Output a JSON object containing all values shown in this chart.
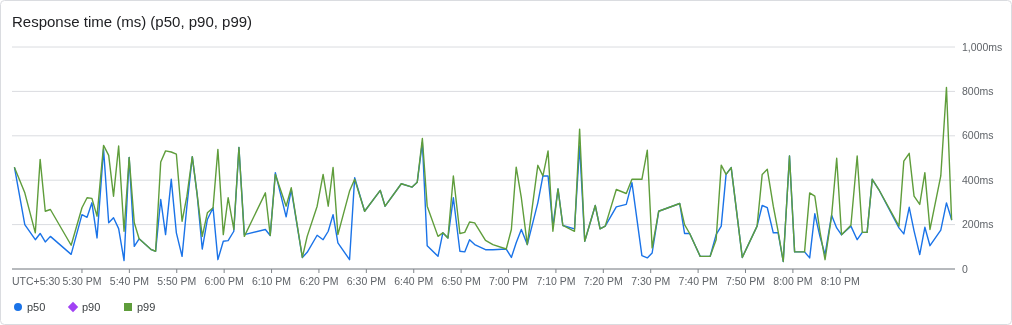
{
  "chart_data": {
    "type": "line",
    "title": "Response time (ms) (p50, p90, p99)",
    "annotations": [
      "UTC+5:30"
    ],
    "x": [
      17.263,
      17.299,
      17.336,
      17.353,
      17.371,
      17.389,
      17.462,
      17.5,
      17.518,
      17.535,
      17.553,
      17.576,
      17.594,
      17.611,
      17.629,
      17.648,
      17.666,
      17.684,
      17.701,
      17.744,
      17.759,
      17.777,
      17.794,
      17.814,
      17.832,
      17.852,
      17.869,
      17.888,
      17.905,
      17.923,
      17.941,
      17.961,
      17.978,
      17.997,
      18.014,
      18.034,
      18.052,
      18.071,
      18.145,
      18.162,
      18.18,
      18.218,
      18.236,
      18.275,
      18.292,
      18.327,
      18.348,
      18.366,
      18.383,
      18.4,
      18.441,
      18.459,
      18.494,
      18.549,
      18.566,
      18.623,
      18.661,
      18.679,
      18.697,
      18.714,
      18.752,
      18.769,
      18.787,
      18.806,
      18.829,
      18.846,
      18.863,
      18.881,
      18.919,
      18.945,
      18.992,
      19.01,
      19.027,
      19.045,
      19.066,
      19.103,
      19.121,
      19.139,
      19.156,
      19.174,
      19.191,
      19.232,
      19.25,
      19.268,
      19.305,
      19.322,
      19.34,
      19.379,
      19.414,
      19.434,
      19.469,
      19.488,
      19.505,
      19.528,
      19.602,
      19.619,
      19.637,
      19.674,
      19.709,
      19.73,
      19.748,
      19.765,
      19.783,
      19.822,
      19.874,
      19.892,
      19.91,
      19.931,
      19.948,
      19.966,
      19.988,
      20.006,
      20.041,
      20.059,
      20.077,
      20.095,
      20.113,
      20.136,
      20.154,
      20.171,
      20.204,
      20.226,
      20.244,
      20.261,
      20.279,
      20.302,
      20.373,
      20.39,
      20.409,
      20.426,
      20.446,
      20.464,
      20.482,
      20.52,
      20.54,
      20.558
    ],
    "series": [
      {
        "name": "p50",
        "color": "#1a73e8",
        "values": [
          456,
          200,
          132,
          160,
          122,
          147,
          66,
          245,
          233,
          298,
          140,
          539,
          208,
          231,
          182,
          38,
          502,
          102,
          136,
          87,
          80,
          313,
          155,
          404,
          163,
          57,
          283,
          506,
          336,
          90,
          223,
          276,
          42,
          125,
          128,
          170,
          547,
          155,
          178,
          151,
          434,
          235,
          358,
          52,
          75,
          152,
          132,
          170,
          245,
          118,
          42,
          411,
          260,
          354,
          283,
          384,
          369,
          391,
          570,
          105,
          57,
          163,
          140,
          321,
          80,
          77,
          132,
          110,
          87,
          87,
          90,
          52,
          118,
          178,
          110,
          298,
          419,
          419,
          193,
          361,
          196,
          181,
          554,
          125,
          286,
          181,
          193,
          280,
          291,
          389,
          60,
          50,
          72,
          260,
          295,
          160,
          160,
          57,
          57,
          155,
          193,
          426,
          457,
          52,
          193,
          286,
          276,
          163,
          163,
          34,
          509,
          77,
          77,
          50,
          249,
          147,
          65,
          242,
          185,
          154,
          193,
          132,
          165,
          165,
          404,
          358,
          185,
          158,
          278,
          172,
          65,
          188,
          105,
          175,
          298,
          223
        ]
      },
      {
        "name": "p90",
        "color": "#a142f4",
        "values": [
          null,
          null,
          null,
          null,
          null,
          null,
          null,
          null,
          null,
          null,
          null,
          null,
          null,
          null,
          null,
          null,
          null,
          null,
          null,
          null,
          null,
          null,
          null,
          null,
          null,
          null,
          null,
          null,
          null,
          null,
          null,
          null,
          null,
          null,
          null,
          null,
          null,
          null,
          null,
          null,
          null,
          null,
          null,
          null,
          null,
          null,
          null,
          null,
          null,
          null,
          null,
          null,
          null,
          null,
          null,
          null,
          null,
          null,
          null,
          null,
          null,
          null,
          null,
          null,
          null,
          null,
          null,
          null,
          null,
          null,
          null,
          null,
          null,
          null,
          null,
          null,
          null,
          null,
          null,
          null,
          null,
          null,
          null,
          null,
          null,
          null,
          null,
          null,
          null,
          null,
          null,
          null,
          null,
          null,
          null,
          null,
          null,
          null,
          null,
          null,
          null,
          null,
          null,
          null,
          null,
          null,
          null,
          null,
          null,
          null,
          null,
          null,
          null,
          null,
          null,
          null,
          null,
          null,
          null,
          null,
          null,
          null,
          null,
          null,
          null,
          null,
          null,
          null,
          null,
          null,
          null,
          null,
          null,
          null,
          null,
          null
        ]
      },
      {
        "name": "p99",
        "color": "#5f9d3b",
        "values": [
          456,
          343,
          163,
          494,
          260,
          268,
          107,
          276,
          321,
          318,
          238,
          557,
          512,
          328,
          554,
          170,
          502,
          208,
          136,
          87,
          80,
          482,
          532,
          527,
          517,
          215,
          328,
          506,
          336,
          147,
          253,
          276,
          539,
          155,
          321,
          178,
          547,
          147,
          343,
          151,
          426,
          283,
          366,
          52,
          147,
          283,
          426,
          283,
          457,
          155,
          351,
          404,
          260,
          354,
          283,
          384,
          369,
          391,
          588,
          283,
          147,
          163,
          140,
          419,
          160,
          165,
          212,
          208,
          129,
          110,
          90,
          178,
          459,
          321,
          110,
          467,
          419,
          532,
          170,
          361,
          196,
          170,
          630,
          125,
          286,
          181,
          193,
          358,
          340,
          404,
          404,
          535,
          95,
          260,
          295,
          200,
          160,
          57,
          57,
          132,
          468,
          426,
          457,
          52,
          193,
          426,
          449,
          283,
          170,
          34,
          509,
          77,
          77,
          343,
          328,
          170,
          42,
          238,
          499,
          154,
          197,
          509,
          165,
          165,
          404,
          358,
          193,
          486,
          521,
          328,
          291,
          434,
          178,
          419,
          818,
          223
        ]
      }
    ],
    "xlim": [
      17.254,
      20.57
    ],
    "xticks": [
      {
        "value": 17.5,
        "label": "5:30 PM"
      },
      {
        "value": 17.6667,
        "label": "5:40 PM"
      },
      {
        "value": 17.8333,
        "label": "5:50 PM"
      },
      {
        "value": 18,
        "label": "6:00 PM"
      },
      {
        "value": 18.1667,
        "label": "6:10 PM"
      },
      {
        "value": 18.3333,
        "label": "6:20 PM"
      },
      {
        "value": 18.5,
        "label": "6:30 PM"
      },
      {
        "value": 18.6667,
        "label": "6:40 PM"
      },
      {
        "value": 18.8333,
        "label": "6:50 PM"
      },
      {
        "value": 19,
        "label": "7:00 PM"
      },
      {
        "value": 19.1667,
        "label": "7:10 PM"
      },
      {
        "value": 19.3333,
        "label": "7:20 PM"
      },
      {
        "value": 19.5,
        "label": "7:30 PM"
      },
      {
        "value": 19.6667,
        "label": "7:40 PM"
      },
      {
        "value": 19.8333,
        "label": "7:50 PM"
      },
      {
        "value": 20,
        "label": "8:00 PM"
      },
      {
        "value": 20.1667,
        "label": "8:10 PM"
      }
    ],
    "ylim": [
      0,
      1000
    ],
    "yticks": [
      0,
      {
        "value": 200,
        "label": "200ms"
      },
      {
        "value": 400,
        "label": "400ms"
      },
      {
        "value": 600,
        "label": "600ms"
      },
      {
        "value": 800,
        "label": "800ms"
      },
      {
        "value": 1000,
        "label": "1,000ms"
      }
    ],
    "grid": "y",
    "legend": "bottom",
    "line_style": "solid"
  }
}
